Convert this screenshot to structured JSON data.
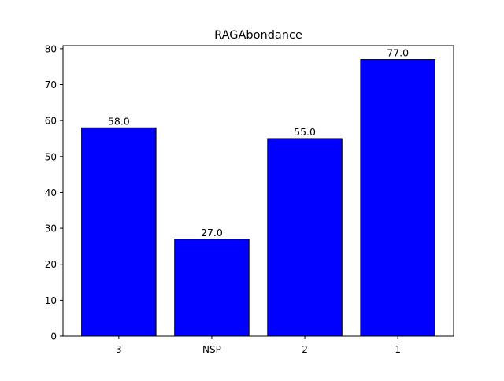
{
  "chart_data": {
    "type": "bar",
    "title": "RAGAbondance",
    "xlabel": "",
    "ylabel": "",
    "categories": [
      "3",
      "NSP",
      "2",
      "1"
    ],
    "values": [
      58.0,
      27.0,
      55.0,
      77.0
    ],
    "data_labels": [
      "58.0",
      "27.0",
      "55.0",
      "77.0"
    ],
    "ylim": [
      0,
      80.85
    ],
    "yticks": [
      0,
      10,
      20,
      30,
      40,
      50,
      60,
      70,
      80
    ],
    "grid": false,
    "legend": "none",
    "bar_color": "#0000ff",
    "bar_edge_color": "#000000"
  }
}
